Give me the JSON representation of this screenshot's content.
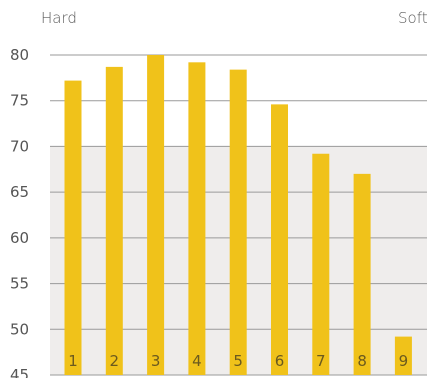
{
  "labels": {
    "hard": "Hard",
    "soft": "Soft"
  },
  "colors": {
    "bar": "#f0c21a",
    "band": "#efedec",
    "grid": "#9a9a9a",
    "text": "#555555"
  },
  "chart_data": {
    "type": "bar",
    "categories": [
      "1",
      "2",
      "3",
      "4",
      "5",
      "6",
      "7",
      "8",
      "9"
    ],
    "values": [
      77.2,
      78.7,
      80.0,
      79.2,
      78.4,
      74.6,
      69.2,
      67.0,
      49.2
    ],
    "ylim": [
      45,
      80
    ],
    "yticks": [
      45,
      50,
      55,
      60,
      65,
      70,
      75,
      80
    ],
    "shaded_band": [
      45,
      70
    ],
    "grid": true,
    "xlabel": "",
    "ylabel": "",
    "title": ""
  }
}
